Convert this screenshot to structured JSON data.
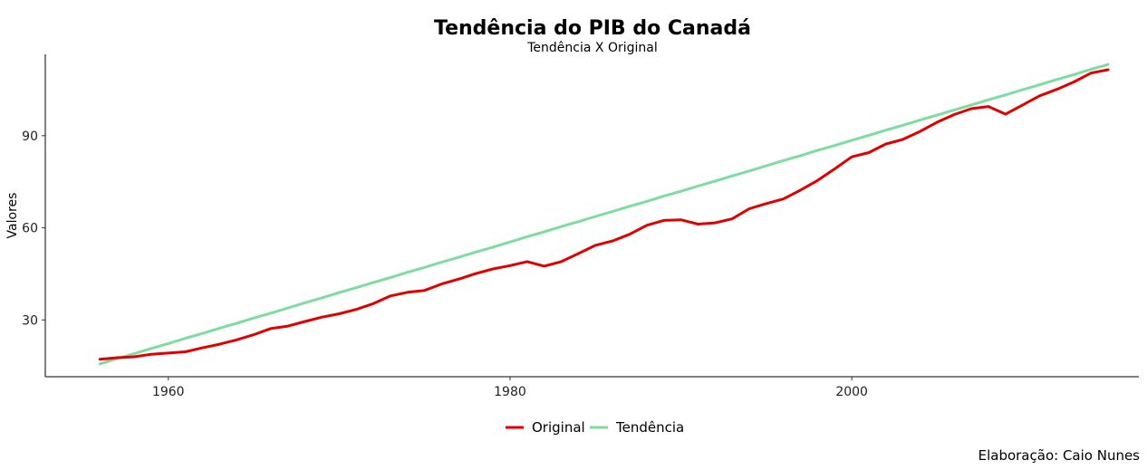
{
  "chart_data": {
    "type": "line",
    "title": "Tendência do PIB do Canadá",
    "subtitle": "Tendência X Original",
    "xlabel": "",
    "ylabel": "Valores",
    "caption": "Elaboração: Caio Nunes",
    "xlim": [
      1952.8,
      2016.8
    ],
    "ylim": [
      11.5,
      116.5
    ],
    "x_ticks": [
      1960,
      1980,
      2000
    ],
    "y_ticks": [
      30,
      60,
      90
    ],
    "grid": false,
    "legend_position": "bottom",
    "x": [
      1956,
      1957,
      1958,
      1959,
      1960,
      1961,
      1962,
      1963,
      1964,
      1965,
      1966,
      1967,
      1968,
      1969,
      1970,
      1971,
      1972,
      1973,
      1974,
      1975,
      1976,
      1977,
      1978,
      1979,
      1980,
      1981,
      1982,
      1983,
      1984,
      1985,
      1986,
      1987,
      1988,
      1989,
      1990,
      1991,
      1992,
      1993,
      1994,
      1995,
      1996,
      1997,
      1998,
      1999,
      2000,
      2001,
      2002,
      2003,
      2004,
      2005,
      2006,
      2007,
      2008,
      2009,
      2010,
      2011,
      2012,
      2013,
      2014,
      2015
    ],
    "series": [
      {
        "name": "Original",
        "color": "#e00000",
        "values": [
          17.2,
          17.7,
          18.0,
          18.8,
          19.2,
          19.6,
          20.9,
          22.1,
          23.5,
          25.2,
          27.2,
          28.0,
          29.5,
          30.9,
          32.0,
          33.4,
          35.3,
          37.8,
          39.0,
          39.6,
          41.7,
          43.3,
          45.1,
          46.6,
          47.7,
          49.0,
          47.5,
          49.0,
          51.6,
          54.3,
          55.7,
          57.9,
          60.8,
          62.4,
          62.6,
          61.2,
          61.6,
          62.9,
          66.2,
          67.9,
          69.4,
          72.3,
          75.4,
          79.2,
          83.1,
          84.5,
          87.3,
          88.8,
          91.4,
          94.4,
          96.9,
          98.8,
          99.5,
          97.0,
          100.0,
          103.0,
          105.1,
          107.5,
          110.4,
          111.5
        ]
      },
      {
        "name": "Tendência",
        "color": "#7fdca0",
        "values": [
          15.7,
          17.4,
          19.0,
          20.7,
          22.3,
          24.0,
          25.6,
          27.3,
          28.9,
          30.6,
          32.2,
          33.9,
          35.6,
          37.2,
          38.9,
          40.5,
          42.2,
          43.8,
          45.5,
          47.1,
          48.8,
          50.4,
          52.1,
          53.7,
          55.4,
          57.1,
          58.7,
          60.4,
          62.0,
          63.7,
          65.3,
          67.0,
          68.6,
          70.3,
          71.9,
          73.6,
          75.2,
          76.9,
          78.5,
          80.2,
          81.9,
          83.5,
          85.2,
          86.8,
          88.5,
          90.1,
          91.8,
          93.4,
          95.1,
          96.7,
          98.4,
          100.0,
          101.7,
          103.3,
          105.0,
          106.6,
          108.3,
          109.9,
          111.6,
          113.2
        ]
      }
    ]
  }
}
